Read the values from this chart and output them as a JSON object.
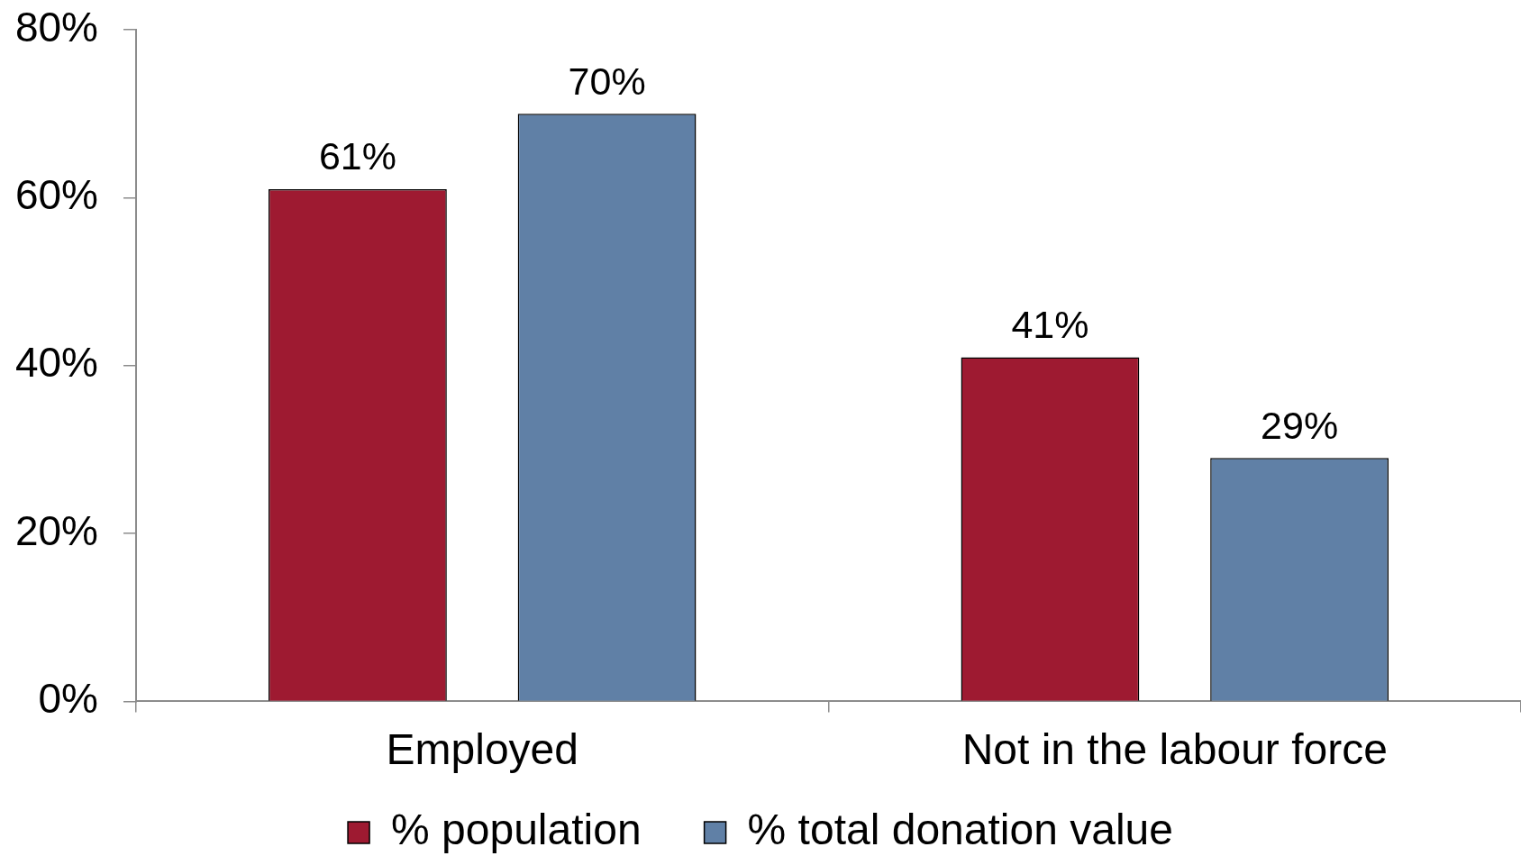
{
  "chart_data": {
    "type": "bar",
    "categories": [
      "Employed",
      "Not in the labour force"
    ],
    "series": [
      {
        "name": "% population",
        "color": "#9e1a31",
        "values": [
          61,
          41
        ],
        "value_labels": [
          "61%",
          "41%"
        ]
      },
      {
        "name": "% total donation value",
        "color": "#6080a6",
        "values": [
          70,
          29
        ],
        "value_labels": [
          "70%",
          "29%"
        ]
      }
    ],
    "ylim": [
      0,
      80
    ],
    "yticks": [
      {
        "value": 0,
        "label": "0%"
      },
      {
        "value": 20,
        "label": "20%"
      },
      {
        "value": 40,
        "label": "40%"
      },
      {
        "value": 60,
        "label": "60%"
      },
      {
        "value": 80,
        "label": "80%"
      }
    ],
    "legend": "bottom"
  }
}
